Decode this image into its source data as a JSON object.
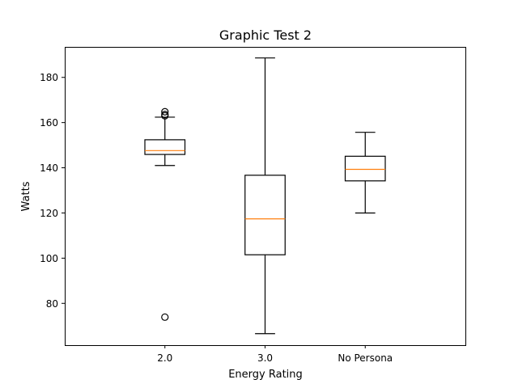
{
  "chart_data": {
    "type": "box",
    "title": "Graphic Test 2",
    "xlabel": "Energy Rating",
    "ylabel": "Watts",
    "ylim": [
      61.5,
      193.5
    ],
    "yticks": [
      80,
      100,
      120,
      140,
      160,
      180
    ],
    "grid": false,
    "legend": "none",
    "colors": {
      "box": "#000000",
      "median": "#ff7f0e"
    },
    "categories": [
      "2.0",
      "3.0",
      "No Persona"
    ],
    "boxes": [
      {
        "label": "2.0",
        "whisker_low": 141.0,
        "q1": 145.9,
        "median": 147.6,
        "q3": 152.4,
        "whisker_high": 162.4,
        "outliers": [
          164.8,
          163.6,
          163.0,
          73.9
        ]
      },
      {
        "label": "3.0",
        "whisker_low": 66.6,
        "q1": 101.5,
        "median": 117.4,
        "q3": 136.7,
        "whisker_high": 188.6,
        "outliers": []
      },
      {
        "label": "No Persona",
        "whisker_low": 120.0,
        "q1": 134.2,
        "median": 139.3,
        "q3": 145.1,
        "whisker_high": 155.7,
        "outliers": []
      }
    ]
  }
}
